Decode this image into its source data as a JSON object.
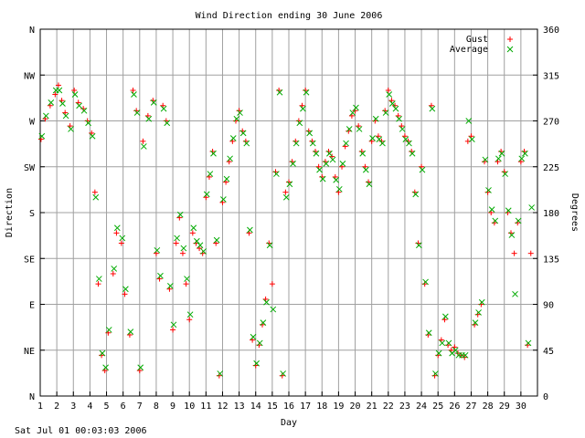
{
  "chart_data": {
    "type": "scatter",
    "title": "Wind Direction ending 30 June 2006",
    "xlabel": "Day",
    "ylabel": "Direction",
    "y2label": "Degrees",
    "footer": "Sat Jul 01 00:03:03 2006",
    "xlim": [
      1,
      31
    ],
    "ylim": [
      0,
      360
    ],
    "x_ticks": [
      1,
      2,
      3,
      4,
      5,
      6,
      7,
      8,
      9,
      10,
      11,
      12,
      13,
      14,
      15,
      16,
      17,
      18,
      19,
      20,
      21,
      22,
      23,
      24,
      25,
      26,
      27,
      28,
      29,
      30
    ],
    "y_ticks_left": [
      {
        "value": 0,
        "label": "N"
      },
      {
        "value": 45,
        "label": "NE"
      },
      {
        "value": 90,
        "label": "E"
      },
      {
        "value": 135,
        "label": "SE"
      },
      {
        "value": 180,
        "label": "S"
      },
      {
        "value": 225,
        "label": "SW"
      },
      {
        "value": 270,
        "label": "W"
      },
      {
        "value": 315,
        "label": "NW"
      },
      {
        "value": 360,
        "label": "N"
      }
    ],
    "y_ticks_right": [
      0,
      45,
      90,
      135,
      180,
      225,
      270,
      315,
      360
    ],
    "grid": true,
    "legend_position": "top-right",
    "series": [
      {
        "name": "Gust",
        "marker": "plus",
        "color": "#ff0000",
        "points": [
          [
            1.05,
            252
          ],
          [
            1.3,
            272
          ],
          [
            1.6,
            285
          ],
          [
            1.9,
            296
          ],
          [
            2.1,
            305
          ],
          [
            2.3,
            290
          ],
          [
            2.5,
            278
          ],
          [
            2.8,
            265
          ],
          [
            3.05,
            300
          ],
          [
            3.3,
            288
          ],
          [
            3.6,
            282
          ],
          [
            3.85,
            270
          ],
          [
            4.1,
            258
          ],
          [
            4.3,
            200
          ],
          [
            4.5,
            110
          ],
          [
            4.7,
            40
          ],
          [
            4.9,
            25
          ],
          [
            5.1,
            62
          ],
          [
            5.4,
            120
          ],
          [
            5.6,
            160
          ],
          [
            5.9,
            150
          ],
          [
            6.1,
            100
          ],
          [
            6.4,
            60
          ],
          [
            6.6,
            300
          ],
          [
            6.8,
            280
          ],
          [
            7.0,
            25
          ],
          [
            7.2,
            250
          ],
          [
            7.5,
            275
          ],
          [
            7.8,
            290
          ],
          [
            8.0,
            140
          ],
          [
            8.2,
            115
          ],
          [
            8.4,
            285
          ],
          [
            8.6,
            270
          ],
          [
            8.8,
            105
          ],
          [
            9.0,
            65
          ],
          [
            9.2,
            150
          ],
          [
            9.4,
            175
          ],
          [
            9.6,
            140
          ],
          [
            9.8,
            110
          ],
          [
            10.0,
            75
          ],
          [
            10.2,
            160
          ],
          [
            10.4,
            150
          ],
          [
            10.6,
            145
          ],
          [
            10.8,
            140
          ],
          [
            11.0,
            195
          ],
          [
            11.2,
            215
          ],
          [
            11.4,
            240
          ],
          [
            11.6,
            150
          ],
          [
            11.8,
            20
          ],
          [
            12.0,
            190
          ],
          [
            12.2,
            210
          ],
          [
            12.4,
            230
          ],
          [
            12.6,
            250
          ],
          [
            12.8,
            270
          ],
          [
            13.0,
            280
          ],
          [
            13.2,
            260
          ],
          [
            13.4,
            250
          ],
          [
            13.6,
            160
          ],
          [
            13.8,
            55
          ],
          [
            14.0,
            30
          ],
          [
            14.2,
            50
          ],
          [
            14.4,
            70
          ],
          [
            14.6,
            95
          ],
          [
            14.8,
            150
          ],
          [
            15.0,
            110
          ],
          [
            15.2,
            220
          ],
          [
            15.4,
            300
          ],
          [
            15.6,
            20
          ],
          [
            15.8,
            200
          ],
          [
            16.0,
            210
          ],
          [
            16.2,
            230
          ],
          [
            16.4,
            250
          ],
          [
            16.6,
            270
          ],
          [
            16.8,
            285
          ],
          [
            17.0,
            300
          ],
          [
            17.2,
            260
          ],
          [
            17.4,
            250
          ],
          [
            17.6,
            240
          ],
          [
            17.8,
            225
          ],
          [
            18.0,
            215
          ],
          [
            18.2,
            230
          ],
          [
            18.4,
            240
          ],
          [
            18.6,
            235
          ],
          [
            18.8,
            215
          ],
          [
            19.0,
            200
          ],
          [
            19.2,
            225
          ],
          [
            19.4,
            245
          ],
          [
            19.6,
            260
          ],
          [
            19.8,
            275
          ],
          [
            20.0,
            280
          ],
          [
            20.2,
            265
          ],
          [
            20.4,
            240
          ],
          [
            20.6,
            225
          ],
          [
            20.8,
            210
          ],
          [
            21.0,
            250
          ],
          [
            21.2,
            270
          ],
          [
            21.4,
            255
          ],
          [
            21.6,
            250
          ],
          [
            21.8,
            280
          ],
          [
            22.0,
            300
          ],
          [
            22.2,
            290
          ],
          [
            22.4,
            285
          ],
          [
            22.6,
            275
          ],
          [
            22.8,
            265
          ],
          [
            23.0,
            255
          ],
          [
            23.2,
            250
          ],
          [
            23.4,
            240
          ],
          [
            23.6,
            200
          ],
          [
            23.8,
            150
          ],
          [
            24.0,
            225
          ],
          [
            24.2,
            110
          ],
          [
            24.4,
            60
          ],
          [
            24.6,
            285
          ],
          [
            24.8,
            20
          ],
          [
            25.0,
            40
          ],
          [
            25.2,
            55
          ],
          [
            25.4,
            75
          ],
          [
            25.6,
            50
          ],
          [
            25.8,
            45
          ],
          [
            26.0,
            48
          ],
          [
            26.2,
            42
          ],
          [
            26.4,
            40
          ],
          [
            26.6,
            38
          ],
          [
            26.8,
            250
          ],
          [
            27.0,
            255
          ],
          [
            27.2,
            70
          ],
          [
            27.4,
            80
          ],
          [
            27.6,
            90
          ],
          [
            27.8,
            230
          ],
          [
            28.0,
            200
          ],
          [
            28.2,
            180
          ],
          [
            28.4,
            170
          ],
          [
            28.6,
            230
          ],
          [
            28.8,
            240
          ],
          [
            29.0,
            220
          ],
          [
            29.2,
            180
          ],
          [
            29.4,
            160
          ],
          [
            29.6,
            140
          ],
          [
            29.8,
            170
          ],
          [
            30.0,
            230
          ],
          [
            30.2,
            240
          ],
          [
            30.4,
            50
          ],
          [
            30.6,
            140
          ]
        ]
      },
      {
        "name": "Average",
        "marker": "cross",
        "color": "#00aa00",
        "points": [
          [
            1.1,
            255
          ],
          [
            1.35,
            275
          ],
          [
            1.65,
            288
          ],
          [
            1.95,
            300
          ],
          [
            2.15,
            300
          ],
          [
            2.35,
            287
          ],
          [
            2.55,
            275
          ],
          [
            2.85,
            262
          ],
          [
            3.1,
            296
          ],
          [
            3.35,
            285
          ],
          [
            3.65,
            280
          ],
          [
            3.9,
            268
          ],
          [
            4.15,
            255
          ],
          [
            4.35,
            195
          ],
          [
            4.55,
            115
          ],
          [
            4.75,
            42
          ],
          [
            4.95,
            28
          ],
          [
            5.15,
            65
          ],
          [
            5.45,
            125
          ],
          [
            5.65,
            165
          ],
          [
            5.95,
            155
          ],
          [
            6.15,
            105
          ],
          [
            6.45,
            63
          ],
          [
            6.65,
            296
          ],
          [
            6.85,
            278
          ],
          [
            7.05,
            28
          ],
          [
            7.25,
            245
          ],
          [
            7.55,
            272
          ],
          [
            7.85,
            288
          ],
          [
            8.05,
            143
          ],
          [
            8.25,
            118
          ],
          [
            8.45,
            282
          ],
          [
            8.65,
            268
          ],
          [
            8.85,
            108
          ],
          [
            9.05,
            70
          ],
          [
            9.25,
            155
          ],
          [
            9.45,
            178
          ],
          [
            9.65,
            145
          ],
          [
            9.85,
            115
          ],
          [
            10.05,
            80
          ],
          [
            10.25,
            165
          ],
          [
            10.45,
            152
          ],
          [
            10.65,
            148
          ],
          [
            10.85,
            142
          ],
          [
            11.05,
            198
          ],
          [
            11.25,
            218
          ],
          [
            11.45,
            238
          ],
          [
            11.65,
            153
          ],
          [
            11.85,
            22
          ],
          [
            12.05,
            193
          ],
          [
            12.25,
            213
          ],
          [
            12.45,
            233
          ],
          [
            12.65,
            253
          ],
          [
            12.85,
            272
          ],
          [
            13.05,
            278
          ],
          [
            13.25,
            258
          ],
          [
            13.45,
            248
          ],
          [
            13.65,
            163
          ],
          [
            13.85,
            58
          ],
          [
            14.05,
            32
          ],
          [
            14.25,
            52
          ],
          [
            14.45,
            72
          ],
          [
            14.65,
            92
          ],
          [
            14.85,
            148
          ],
          [
            15.05,
            85
          ],
          [
            15.25,
            218
          ],
          [
            15.45,
            298
          ],
          [
            15.65,
            22
          ],
          [
            15.85,
            195
          ],
          [
            16.05,
            208
          ],
          [
            16.25,
            228
          ],
          [
            16.45,
            248
          ],
          [
            16.65,
            268
          ],
          [
            16.85,
            282
          ],
          [
            17.05,
            298
          ],
          [
            17.25,
            258
          ],
          [
            17.45,
            248
          ],
          [
            17.65,
            238
          ],
          [
            17.85,
            222
          ],
          [
            18.05,
            213
          ],
          [
            18.25,
            228
          ],
          [
            18.45,
            238
          ],
          [
            18.65,
            232
          ],
          [
            18.85,
            212
          ],
          [
            19.05,
            203
          ],
          [
            19.25,
            228
          ],
          [
            19.45,
            248
          ],
          [
            19.65,
            262
          ],
          [
            19.85,
            278
          ],
          [
            20.05,
            283
          ],
          [
            20.25,
            262
          ],
          [
            20.45,
            238
          ],
          [
            20.65,
            222
          ],
          [
            20.85,
            208
          ],
          [
            21.05,
            253
          ],
          [
            21.25,
            272
          ],
          [
            21.45,
            252
          ],
          [
            21.65,
            248
          ],
          [
            21.85,
            278
          ],
          [
            22.05,
            296
          ],
          [
            22.25,
            287
          ],
          [
            22.45,
            282
          ],
          [
            22.65,
            272
          ],
          [
            22.85,
            262
          ],
          [
            23.05,
            252
          ],
          [
            23.25,
            248
          ],
          [
            23.45,
            238
          ],
          [
            23.65,
            198
          ],
          [
            23.85,
            148
          ],
          [
            24.05,
            222
          ],
          [
            24.25,
            112
          ],
          [
            24.45,
            62
          ],
          [
            24.65,
            282
          ],
          [
            24.85,
            22
          ],
          [
            25.05,
            42
          ],
          [
            25.25,
            52
          ],
          [
            25.45,
            78
          ],
          [
            25.65,
            52
          ],
          [
            25.85,
            42
          ],
          [
            26.05,
            45
          ],
          [
            26.25,
            40
          ],
          [
            26.45,
            40
          ],
          [
            26.65,
            40
          ],
          [
            26.85,
            270
          ],
          [
            27.05,
            252
          ],
          [
            27.25,
            72
          ],
          [
            27.45,
            82
          ],
          [
            27.65,
            92
          ],
          [
            27.85,
            232
          ],
          [
            28.05,
            202
          ],
          [
            28.25,
            183
          ],
          [
            28.45,
            172
          ],
          [
            28.65,
            233
          ],
          [
            28.85,
            238
          ],
          [
            29.05,
            218
          ],
          [
            29.25,
            182
          ],
          [
            29.45,
            158
          ],
          [
            29.65,
            100
          ],
          [
            29.85,
            172
          ],
          [
            30.05,
            233
          ],
          [
            30.25,
            238
          ],
          [
            30.45,
            52
          ],
          [
            30.65,
            185
          ]
        ]
      }
    ]
  }
}
